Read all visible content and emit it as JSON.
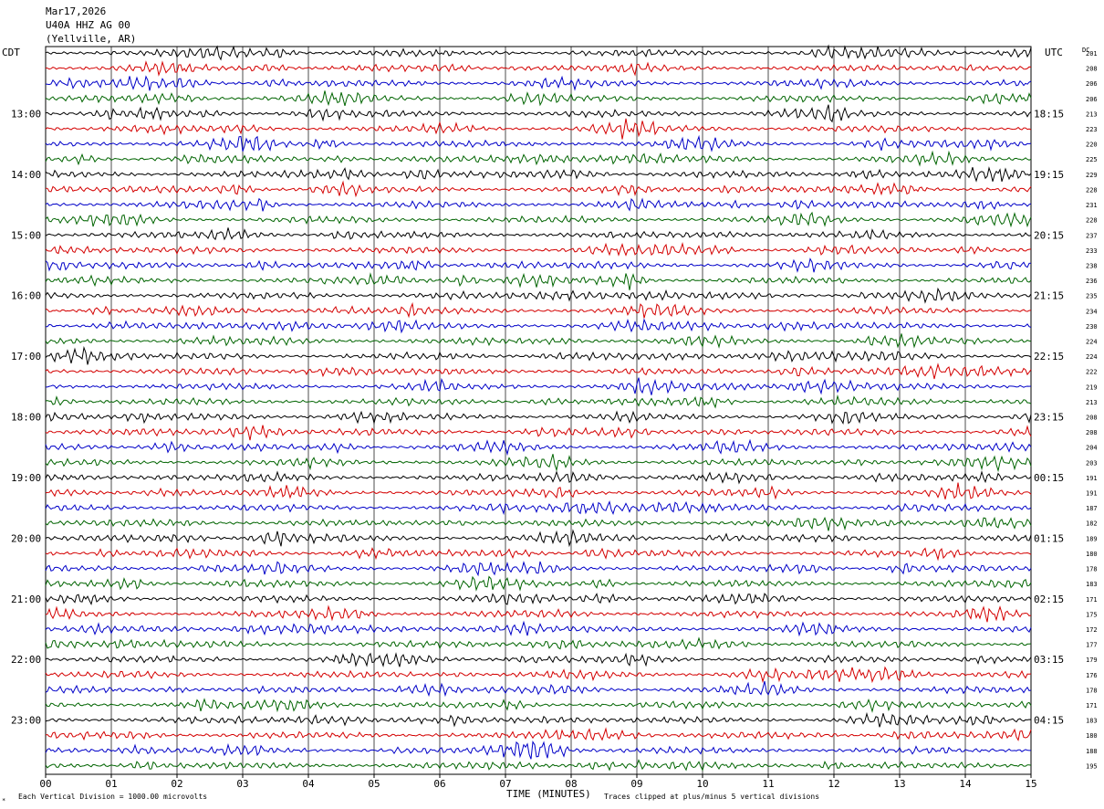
{
  "header": {
    "date": "Mar17,2026",
    "station": "U40A HHZ AG 00",
    "location": "(Yellville, AR)"
  },
  "left_tz": "CDT",
  "right_tz": "UTC",
  "dc_label": "DC",
  "footer": {
    "scale_note": "Each Vertical Division = 1000.00 microvolts",
    "xlabel": "TIME (MINUTES)",
    "clip_note": "Traces clipped at plus/minus 5 vertical divisions"
  },
  "colors": {
    "trace_cycle": [
      "#000000",
      "#d40000",
      "#0000c8",
      "#006400"
    ],
    "grid": "#000000"
  },
  "chart_data": {
    "type": "line",
    "title": "",
    "xlabel": "TIME (MINUTES)",
    "xlim": [
      0,
      15
    ],
    "x_ticks": [
      "00",
      "01",
      "02",
      "03",
      "04",
      "05",
      "06",
      "07",
      "08",
      "09",
      "10",
      "11",
      "12",
      "13",
      "14",
      "15"
    ],
    "rows_per_hour": 4,
    "left_hour_labels": [
      "13:00",
      "14:00",
      "15:00",
      "16:00",
      "17:00",
      "18:00",
      "19:00",
      "20:00",
      "21:00",
      "22:00",
      "23:00"
    ],
    "right_hour_labels": [
      "18:15",
      "19:15",
      "20:15",
      "21:15",
      "22:15",
      "23:15",
      "00:15",
      "01:15",
      "02:15",
      "03:15",
      "04:15"
    ],
    "dc_offsets": [
      "201",
      "208",
      "206",
      "206",
      "213",
      "223",
      "220",
      "225",
      "229",
      "228",
      "231",
      "228",
      "237",
      "233",
      "238",
      "236",
      "235",
      "234",
      "230",
      "224",
      "224",
      "222",
      "219",
      "213",
      "208",
      "208",
      "204",
      "203",
      "191",
      "191",
      "187",
      "182",
      "189",
      "180",
      "178",
      "183",
      "171",
      "175",
      "172",
      "177",
      "179",
      "176",
      "178",
      "171",
      "183",
      "180",
      "188",
      "195"
    ]
  }
}
